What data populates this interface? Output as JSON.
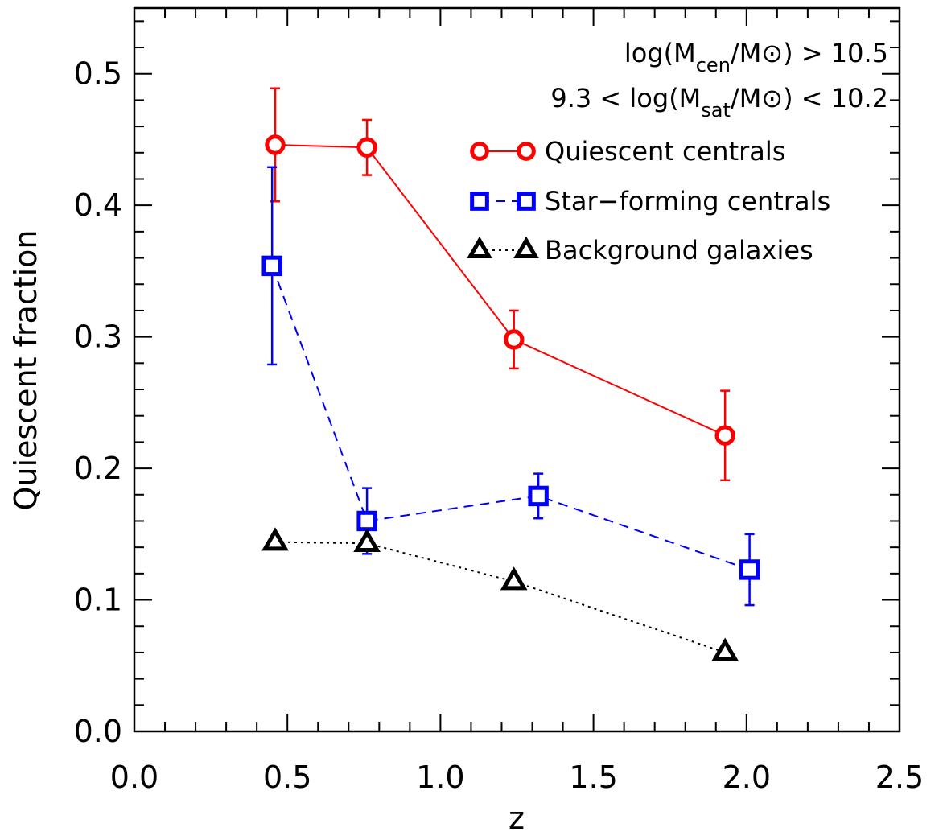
{
  "chart_data": {
    "type": "line",
    "title": "",
    "xlabel": "z",
    "ylabel": "Quiescent fraction",
    "xlim": [
      0.0,
      2.5
    ],
    "ylim": [
      0.0,
      0.55
    ],
    "xticks": [
      0.0,
      0.5,
      1.0,
      1.5,
      2.0,
      2.5
    ],
    "xtick_labels": [
      "0.0",
      "0.5",
      "1.0",
      "1.5",
      "2.0",
      "2.5"
    ],
    "yticks": [
      0.0,
      0.1,
      0.2,
      0.3,
      0.4,
      0.5
    ],
    "ytick_labels": [
      "0.0",
      "0.1",
      "0.2",
      "0.3",
      "0.4",
      "0.5"
    ],
    "grid": false,
    "legend_position": "top-right",
    "annotations": [
      {
        "prefix": "log(M",
        "sub": "cen",
        "suffix": "/M⊙) > 10.5"
      },
      {
        "prefix": "9.3 < log(M",
        "sub": "sat",
        "suffix": "/M⊙) < 10.2"
      }
    ],
    "series": [
      {
        "name": "Quiescent centrals",
        "color": "#ff0000",
        "marker": "circle",
        "linestyle": "solid",
        "x": [
          0.46,
          0.76,
          1.24,
          1.93
        ],
        "y": [
          0.446,
          0.444,
          0.298,
          0.225
        ],
        "yerr": [
          0.043,
          0.021,
          0.022,
          0.034
        ]
      },
      {
        "name": "Star−forming centrals",
        "color": "#0000ff",
        "marker": "square",
        "linestyle": "dashed",
        "x": [
          0.45,
          0.76,
          1.32,
          2.01
        ],
        "y": [
          0.354,
          0.16,
          0.179,
          0.123
        ],
        "yerr": [
          0.075,
          0.025,
          0.017,
          0.027
        ]
      },
      {
        "name": "Background galaxies",
        "color": "#000000",
        "marker": "triangle",
        "linestyle": "dotted",
        "x": [
          0.46,
          0.76,
          1.24,
          1.93
        ],
        "y": [
          0.144,
          0.143,
          0.114,
          0.06
        ],
        "yerr": null
      }
    ]
  }
}
